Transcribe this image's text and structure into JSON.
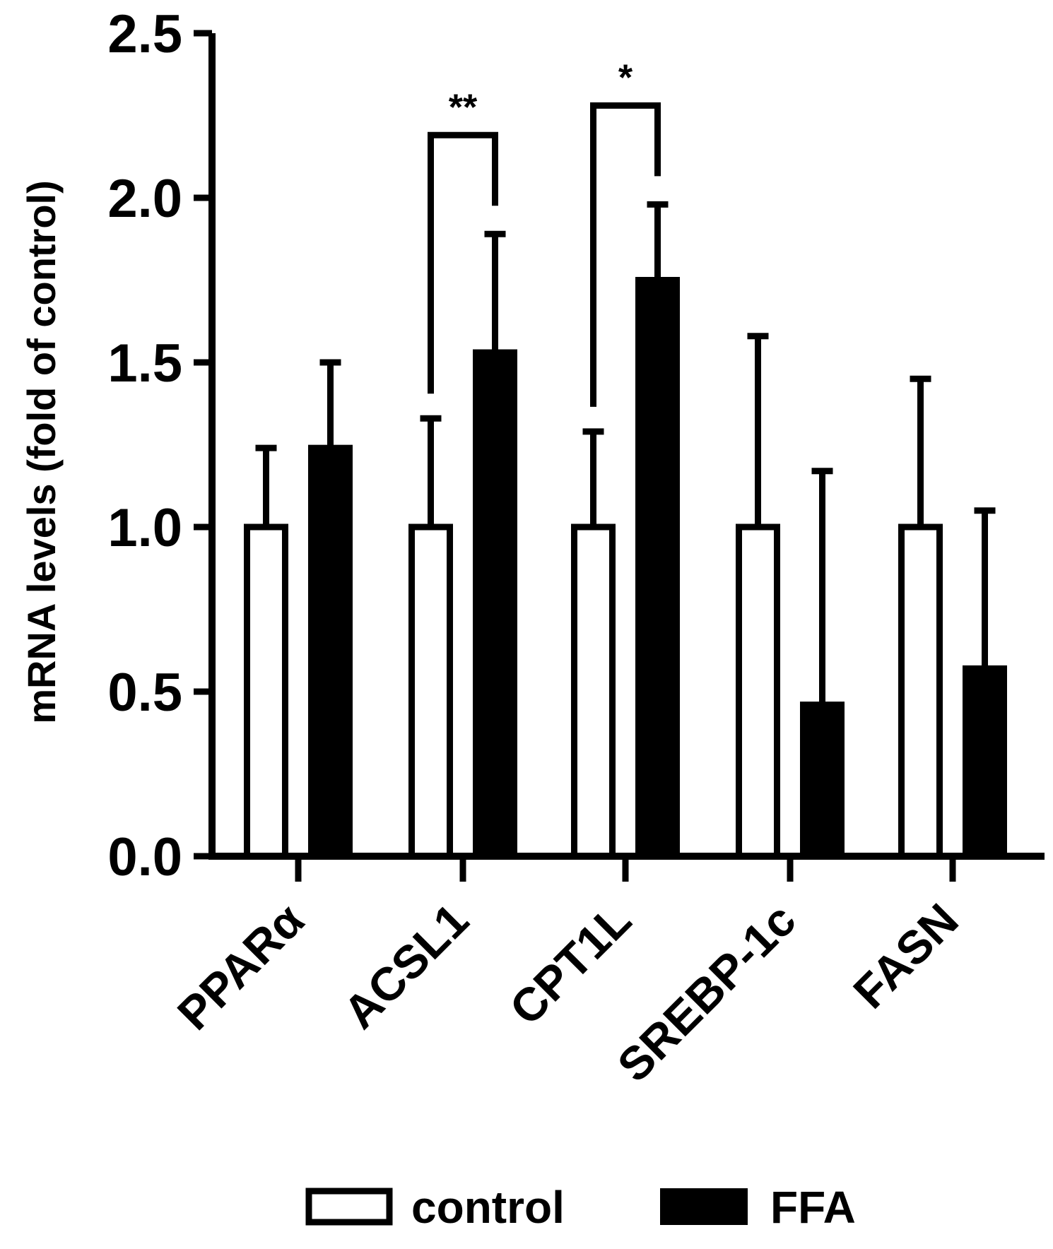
{
  "chart_data": {
    "type": "bar",
    "ylabel": "mRNA levels (fold of control)",
    "ylim": [
      0,
      2.5
    ],
    "yticks": [
      "0.0",
      "0.5",
      "1.0",
      "1.5",
      "2.0",
      "2.5"
    ],
    "categories": [
      "PPARα",
      "ACSL1",
      "CPT1L",
      "SREBP-1c",
      "FASN"
    ],
    "series": [
      {
        "name": "control",
        "values": [
          1.0,
          1.0,
          1.0,
          1.0,
          1.0
        ],
        "errors": [
          0.24,
          0.33,
          0.29,
          0.58,
          0.45
        ],
        "color": "#ffffff"
      },
      {
        "name": "FFA",
        "values": [
          1.24,
          1.53,
          1.75,
          0.46,
          0.57
        ],
        "errors": [
          0.26,
          0.36,
          0.23,
          0.71,
          0.48
        ],
        "color": "#000000"
      }
    ],
    "significance": [
      {
        "category": "ACSL1",
        "label": "**"
      },
      {
        "category": "CPT1L",
        "label": "*"
      }
    ],
    "legend": "bottom",
    "grid": false
  }
}
